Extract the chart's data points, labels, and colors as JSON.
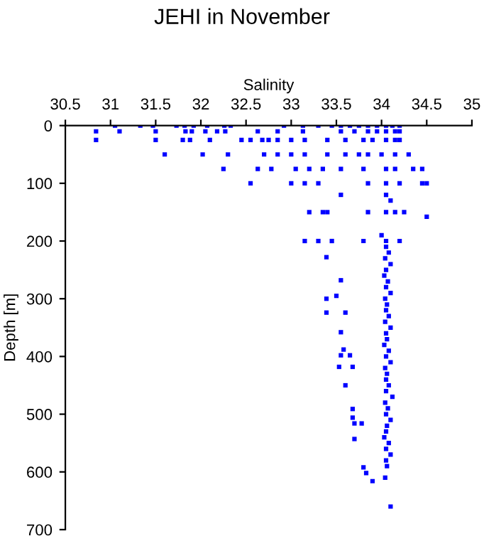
{
  "chart_data": {
    "type": "scatter",
    "title": "JEHI in November",
    "xlabel": "Salinity",
    "ylabel": "Depth [m]",
    "xlim": [
      30.5,
      35
    ],
    "xticks": [
      30.5,
      31,
      31.5,
      32,
      32.5,
      33,
      33.5,
      34,
      34.5,
      35
    ],
    "ylim": [
      700,
      0
    ],
    "yticks": [
      0,
      100,
      200,
      300,
      400,
      500,
      600,
      700
    ],
    "marker": "square",
    "grid": false,
    "legend": false,
    "series": [
      {
        "color": "#0000ff",
        "x": [
          31.05,
          31.33,
          31.47,
          31.73,
          31.82,
          31.92,
          32.07,
          32.26,
          32.33,
          32.92,
          33.13,
          33.3,
          33.45,
          33.55,
          33.65,
          33.75,
          33.85,
          33.95,
          34.05,
          34.12,
          34.2,
          30.84,
          31.1,
          31.5,
          31.83,
          31.9,
          32.05,
          32.18,
          32.27,
          32.63,
          32.85,
          33.13,
          33.55,
          33.7,
          33.85,
          33.95,
          34.05,
          34.15,
          34.2,
          30.84,
          31.5,
          31.8,
          31.88,
          32.1,
          32.45,
          32.55,
          32.68,
          32.75,
          32.85,
          33.0,
          33.15,
          33.4,
          33.6,
          33.8,
          33.9,
          34.05,
          34.15,
          34.2,
          31.6,
          32.02,
          32.3,
          32.7,
          32.85,
          33.0,
          33.15,
          33.4,
          33.6,
          33.75,
          33.85,
          34.0,
          34.15,
          34.3,
          32.25,
          32.63,
          32.78,
          33.05,
          33.2,
          33.35,
          33.55,
          33.8,
          34.05,
          34.15,
          34.35,
          34.45,
          32.55,
          33.0,
          33.15,
          33.3,
          33.85,
          34.05,
          34.2,
          34.45,
          34.5,
          33.55,
          34.05,
          34.1,
          33.2,
          33.35,
          33.4,
          33.85,
          34.05,
          34.15,
          34.25,
          34.5,
          33.15,
          33.3,
          33.45,
          33.8,
          34.0,
          34.05,
          34.2,
          33.39,
          33.55,
          33.39,
          33.5,
          33.39,
          33.6,
          33.55,
          33.58,
          33.55,
          33.65,
          33.53,
          33.68,
          33.6,
          33.68,
          33.68,
          33.78,
          33.7,
          33.7,
          33.8,
          33.83,
          33.9,
          34.05,
          34.08,
          34.04,
          34.1,
          34.05,
          34.03,
          34.07,
          34.05,
          34.1,
          34.04,
          34.06,
          34.05,
          34.08,
          34.04,
          34.1,
          34.05,
          34.06,
          34.03,
          34.08,
          34.05,
          34.1,
          34.04,
          34.06,
          34.05,
          34.08,
          34.05,
          34.12,
          34.04,
          34.07,
          34.05,
          34.1,
          34.06,
          34.05,
          34.03,
          34.08,
          34.05,
          34.1,
          34.05,
          34.06,
          34.04,
          34.1
        ],
        "values": [
          0,
          0,
          0,
          0,
          0,
          0,
          0,
          0,
          0,
          0,
          0,
          0,
          0,
          0,
          0,
          0,
          0,
          0,
          0,
          0,
          0,
          10,
          10,
          10,
          10,
          10,
          10,
          10,
          10,
          10,
          10,
          10,
          10,
          10,
          10,
          10,
          10,
          10,
          10,
          25,
          25,
          25,
          25,
          25,
          25,
          25,
          25,
          25,
          25,
          25,
          25,
          25,
          25,
          25,
          25,
          25,
          25,
          25,
          50,
          50,
          50,
          50,
          50,
          50,
          50,
          50,
          50,
          50,
          50,
          50,
          50,
          50,
          75,
          75,
          75,
          75,
          75,
          75,
          75,
          75,
          75,
          75,
          75,
          75,
          100,
          100,
          100,
          100,
          100,
          100,
          100,
          100,
          100,
          120,
          120,
          130,
          150,
          150,
          150,
          150,
          150,
          150,
          150,
          158,
          200,
          200,
          200,
          200,
          190,
          200,
          200,
          228,
          268,
          300,
          295,
          324,
          324,
          358,
          388,
          398,
          398,
          418,
          418,
          450,
          491,
          506,
          516,
          516,
          543,
          592,
          602,
          616,
          210,
          220,
          230,
          240,
          250,
          260,
          270,
          280,
          290,
          300,
          310,
          320,
          330,
          340,
          350,
          360,
          370,
          380,
          390,
          400,
          410,
          420,
          430,
          440,
          450,
          460,
          470,
          480,
          490,
          500,
          510,
          520,
          530,
          540,
          550,
          560,
          570,
          580,
          590,
          610,
          660
        ]
      }
    ]
  }
}
